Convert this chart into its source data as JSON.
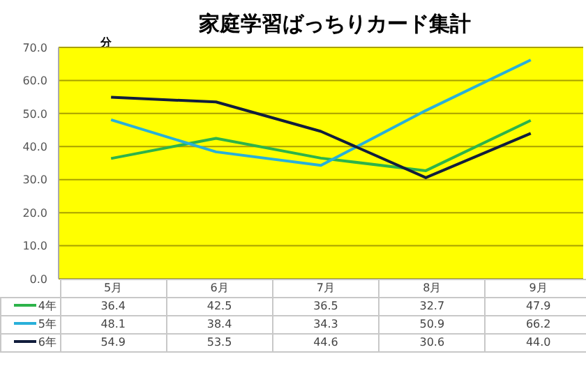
{
  "chart_data": {
    "type": "line",
    "title": "家庭学習ばっちりカード集計",
    "ylabel": "分",
    "categories": [
      "5月",
      "6月",
      "7月",
      "8月",
      "9月"
    ],
    "series": [
      {
        "name": "4年",
        "color": "#2db34a",
        "values": [
          36.4,
          42.5,
          36.5,
          32.7,
          47.9
        ],
        "value_labels": [
          "36.4",
          "42.5",
          "36.5",
          "32.7",
          "47.9"
        ]
      },
      {
        "name": "5年",
        "color": "#29b0d9",
        "values": [
          48.1,
          38.4,
          34.3,
          50.9,
          66.2
        ],
        "value_labels": [
          "48.1",
          "38.4",
          "34.3",
          "50.9",
          "66.2"
        ]
      },
      {
        "name": "6年",
        "color": "#111d3c",
        "values": [
          54.9,
          53.5,
          44.6,
          30.6,
          44.0
        ],
        "value_labels": [
          "54.9",
          "53.5",
          "44.6",
          "30.6",
          "44.0"
        ]
      }
    ],
    "ylim": [
      0,
      70
    ],
    "yticks": [
      {
        "value": 0,
        "label": "0.0"
      },
      {
        "value": 10,
        "label": "10.0"
      },
      {
        "value": 20,
        "label": "20.0"
      },
      {
        "value": 30,
        "label": "30.0"
      },
      {
        "value": 40,
        "label": "40.0"
      },
      {
        "value": 50,
        "label": "50.0"
      },
      {
        "value": 60,
        "label": "60.0"
      },
      {
        "value": 70,
        "label": "70.0"
      }
    ],
    "grid": "y",
    "legend": "bottom",
    "marker": "none",
    "line_style": "solid"
  }
}
